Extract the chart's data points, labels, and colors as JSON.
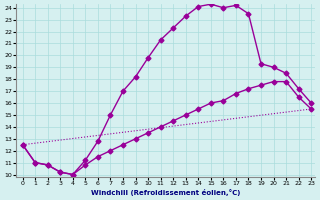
{
  "xlabel": "Windchill (Refroidissement éolien,°C)",
  "bg_color": "#d6f0f0",
  "line_color": "#990099",
  "xlim": [
    0,
    23
  ],
  "ylim": [
    10,
    24
  ],
  "xticks": [
    0,
    1,
    2,
    3,
    4,
    5,
    6,
    7,
    8,
    9,
    10,
    11,
    12,
    13,
    14,
    15,
    16,
    17,
    18,
    19,
    20,
    21,
    22,
    23
  ],
  "yticks": [
    10,
    11,
    12,
    13,
    14,
    15,
    16,
    17,
    18,
    19,
    20,
    21,
    22,
    23,
    24
  ],
  "series1_x": [
    0,
    1,
    2,
    3,
    4,
    5,
    6,
    7,
    8,
    9,
    10,
    11,
    12,
    13,
    14,
    15,
    16,
    17,
    18,
    19,
    20,
    21,
    22,
    23
  ],
  "series1_y": [
    12.5,
    11.0,
    10.8,
    10.2,
    10.0,
    11.2,
    12.8,
    15.0,
    17.0,
    18.2,
    19.8,
    21.3,
    22.3,
    23.3,
    24.1,
    24.3,
    24.0,
    24.2,
    23.5,
    19.3,
    19.0,
    18.5,
    17.2,
    16.0
  ],
  "series2_x": [
    0,
    1,
    2,
    3,
    4,
    5,
    6,
    7,
    8,
    9,
    10,
    11,
    12,
    13,
    14,
    15,
    16,
    17,
    18,
    19,
    20,
    21,
    22,
    23
  ],
  "series2_y": [
    12.5,
    11.0,
    10.8,
    10.2,
    10.0,
    10.8,
    11.5,
    12.0,
    12.5,
    13.0,
    13.5,
    14.0,
    14.5,
    15.0,
    15.5,
    16.0,
    16.2,
    16.8,
    17.2,
    17.5,
    17.8,
    17.8,
    16.5,
    15.5
  ],
  "series3_x": [
    0,
    23
  ],
  "series3_y": [
    12.5,
    15.5
  ]
}
